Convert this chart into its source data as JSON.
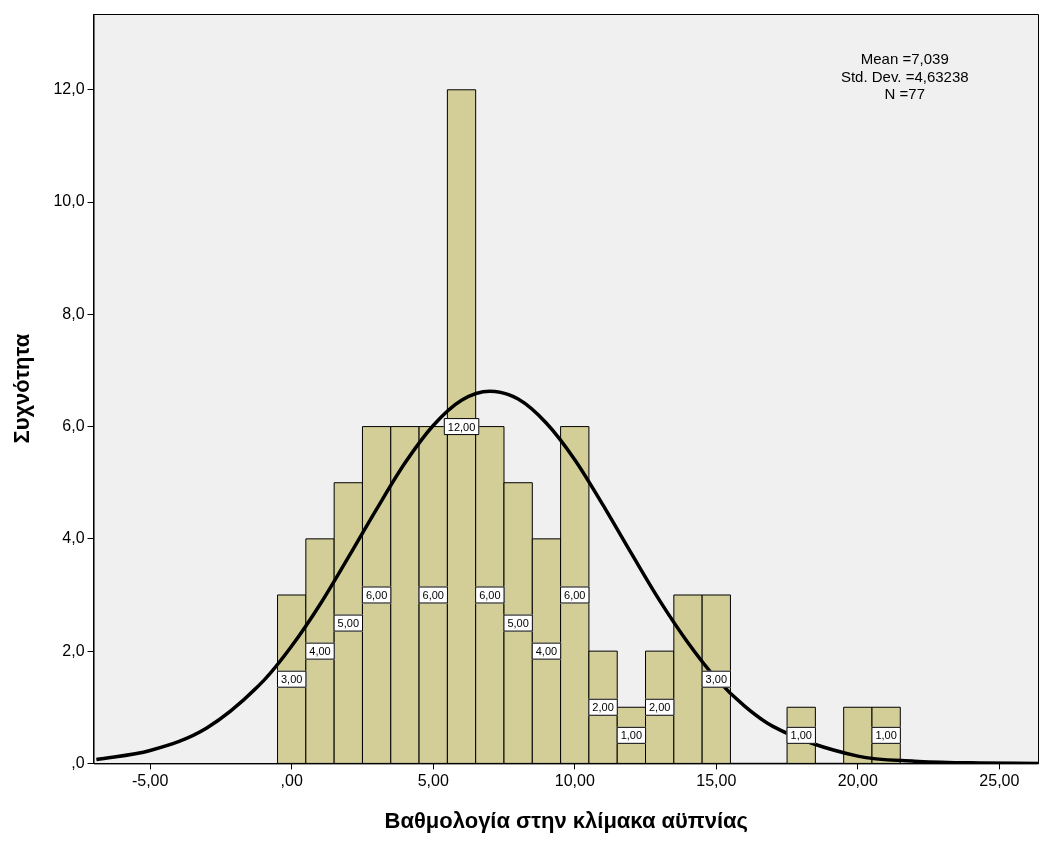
{
  "chart_data": {
    "type": "histogram",
    "xlabel": "Βαθμολογία στην κλίμακα αϋπνίας",
    "ylabel": "Συχνότητα",
    "bins": [
      -0.5,
      0.5,
      1.5,
      2.5,
      3.5,
      4.5,
      5.5,
      6.5,
      7.5,
      8.5,
      9.5,
      10.5,
      11.5,
      12.5,
      13.5,
      14.5,
      15.5,
      16.5,
      17.5,
      18.5,
      19.5,
      20.5,
      21.5
    ],
    "values": [
      3,
      4,
      5,
      6,
      6,
      6,
      12,
      6,
      5,
      4,
      6,
      2,
      1,
      2,
      3,
      3,
      0,
      0,
      1,
      0,
      1,
      1
    ],
    "value_labels": [
      "3,00",
      "4,00",
      "5,00",
      "6,00",
      null,
      "6,00",
      "12,00",
      "6,00",
      "5,00",
      "4,00",
      "6,00",
      "2,00",
      "1,00",
      "2,00",
      null,
      "3,00",
      null,
      null,
      "1,00",
      null,
      null,
      "1,00"
    ],
    "color": "#d3ce97",
    "series": [
      {
        "type": "line",
        "color": "#000000",
        "x": [
          -6.9,
          -5,
          -3,
          -1,
          0,
          1,
          2,
          3,
          4,
          5,
          6,
          7,
          8,
          9,
          10,
          11,
          12,
          13,
          14,
          15,
          16,
          17,
          20,
          22,
          24,
          26.4
        ],
        "values": [
          0.07,
          0.23,
          0.63,
          1.47,
          2.09,
          2.83,
          3.67,
          4.53,
          5.35,
          6.02,
          6.47,
          6.63,
          6.49,
          6.06,
          5.41,
          4.6,
          3.74,
          2.9,
          2.15,
          1.51,
          1.02,
          0.66,
          0.13,
          0.04,
          0.01,
          0
        ]
      }
    ],
    "xlim": [
      -7,
      26.4
    ],
    "ylim": [
      0,
      13.35
    ],
    "xticks": [
      {
        "value": -5,
        "label": "-5,00"
      },
      {
        "value": 0,
        "label": ",00"
      },
      {
        "value": 5,
        "label": "5,00"
      },
      {
        "value": 10,
        "label": "10,00"
      },
      {
        "value": 15,
        "label": "15,00"
      },
      {
        "value": 20,
        "label": "20,00"
      },
      {
        "value": 25,
        "label": "25,00"
      }
    ],
    "yticks": [
      {
        "value": 0,
        "label": ",0"
      },
      {
        "value": 2,
        "label": "2,0"
      },
      {
        "value": 4,
        "label": "4,0"
      },
      {
        "value": 6,
        "label": "6,0"
      },
      {
        "value": 8,
        "label": "8,0"
      },
      {
        "value": 10,
        "label": "10,0"
      },
      {
        "value": 12,
        "label": "12,0"
      }
    ],
    "annotations": [
      "Mean =7,039",
      "Std. Dev. =4,63238",
      "N =77"
    ],
    "grid": false,
    "legend": false
  }
}
